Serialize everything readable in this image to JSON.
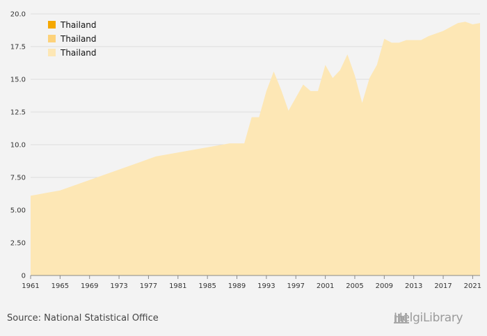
{
  "chart_data": {
    "type": "area",
    "title": "",
    "xlabel": "",
    "ylabel": "",
    "ylim": [
      0,
      20
    ],
    "xlim": [
      1961,
      2022
    ],
    "y_ticks": [
      "0",
      "2.50",
      "5.00",
      "7.50",
      "10.0",
      "12.5",
      "15.0",
      "17.5",
      "20.0"
    ],
    "x_ticks": [
      "1961",
      "1965",
      "1969",
      "1973",
      "1977",
      "1981",
      "1985",
      "1989",
      "1993",
      "1997",
      "2001",
      "2005",
      "2009",
      "2013",
      "2017",
      "2021"
    ],
    "legend": [
      {
        "label": "Thailand",
        "color": "#f5a800"
      },
      {
        "label": "Thailand",
        "color": "#fdd27a"
      },
      {
        "label": "Thailand",
        "color": "#fde7b5"
      }
    ],
    "legend_position": "top-left",
    "grid": true,
    "series": [
      {
        "name": "Thailand",
        "color": "#fde7b5",
        "x": [
          1961,
          1962,
          1963,
          1964,
          1965,
          1966,
          1967,
          1968,
          1969,
          1970,
          1971,
          1972,
          1973,
          1974,
          1975,
          1976,
          1977,
          1978,
          1979,
          1980,
          1981,
          1982,
          1983,
          1984,
          1985,
          1986,
          1987,
          1988,
          1989,
          1990,
          1991,
          1992,
          1993,
          1994,
          1995,
          1996,
          1997,
          1998,
          1999,
          2000,
          2001,
          2002,
          2003,
          2004,
          2005,
          2006,
          2007,
          2008,
          2009,
          2010,
          2011,
          2012,
          2013,
          2014,
          2015,
          2016,
          2017,
          2018,
          2019,
          2020,
          2021,
          2022
        ],
        "values": [
          6.1,
          6.2,
          6.3,
          6.4,
          6.5,
          6.7,
          6.9,
          7.1,
          7.3,
          7.5,
          7.7,
          7.9,
          8.1,
          8.3,
          8.5,
          8.7,
          8.9,
          9.1,
          9.2,
          9.3,
          9.4,
          9.5,
          9.6,
          9.7,
          9.8,
          9.9,
          10.0,
          10.1,
          10.1,
          10.1,
          12.1,
          12.1,
          14.1,
          15.6,
          14.2,
          12.6,
          13.6,
          14.6,
          14.1,
          14.1,
          16.1,
          15.1,
          15.7,
          16.9,
          15.3,
          13.2,
          15.1,
          16.1,
          18.1,
          17.8,
          17.8,
          18.0,
          18.0,
          18.0,
          18.3,
          18.5,
          18.7,
          19.0,
          19.3,
          19.4,
          19.2,
          19.3
        ]
      }
    ]
  },
  "footer": {
    "source": "Source: National Statistical Office",
    "brand": "HelgiLibrary"
  }
}
